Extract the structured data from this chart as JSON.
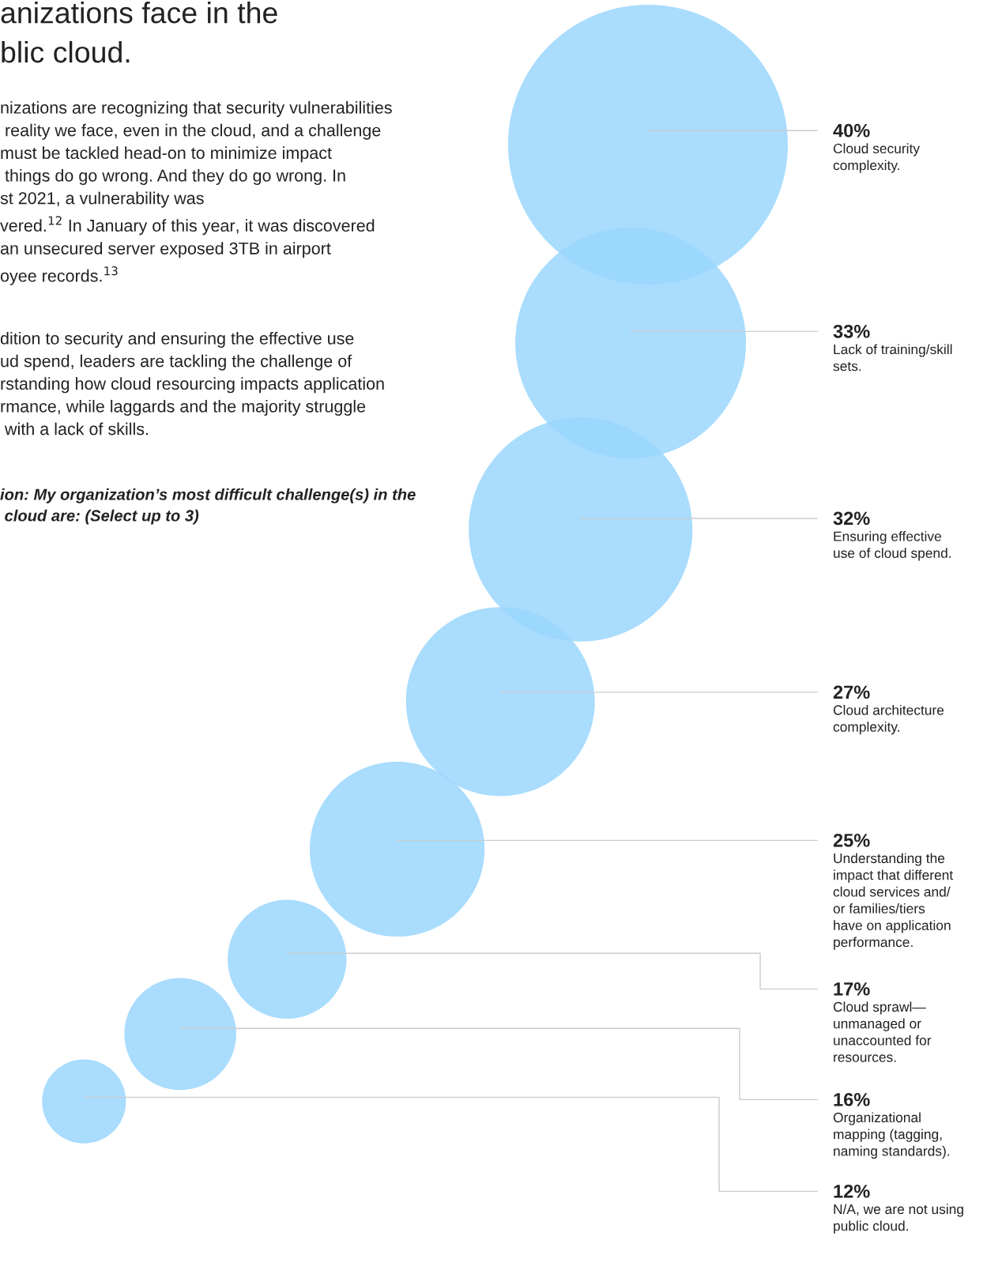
{
  "chart_data": {
    "type": "other",
    "title": "anizations face in the\nblic cloud.",
    "annotations": [
      "nizations are recognizing that security vulnerabilities\n reality we face, even in the cloud, and a challenge\nmust be tackled head-on to minimize impact\n things do go wrong. And they do go wrong. In\nst 2021, a vulnerability was\nvered.$^{12}$ In January of this year, it was discovered\nan unsecured server exposed 3TB in airport\noyee records.$^{13}$",
      "dition to security and ensuring the effective use\nud spend, leaders are tackling the challenge of\nrstanding how cloud resourcing impacts application\nrmance, while laggards and the majority struggle\n with a lack of skills.",
      "ion: My organization’s most difficult challenge(s) in the\n cloud are: (Select up to 3)"
    ],
    "categories": [
      "Cloud security\ncomplexity.",
      "Lack of training/skill\nsets.",
      "Ensuring effective\nuse of cloud spend.",
      "Cloud architecture\ncomplexity.",
      "Understanding the\nimpact that different\ncloud services and/\nor families/tiers\nhave on application\nperformance.",
      "Cloud sprawl—\nunmanaged or\nunaccounted for\nresources.",
      "Organizational\nmapping (tagging,\nnaming standards).",
      "N/A, we are not using\npublic cloud."
    ],
    "values": [
      40,
      33,
      32,
      27,
      25,
      17,
      16,
      12
    ],
    "value_labels": [
      "40%",
      "33%",
      "32%",
      "27%",
      "25%",
      "17%",
      "16%",
      "12%"
    ],
    "color": "#9ad6fd"
  }
}
